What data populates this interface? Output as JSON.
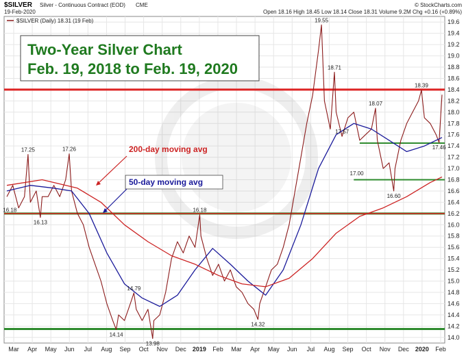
{
  "header": {
    "symbol": "$SILVER",
    "description": "Silver - Continuous Contract (EOD)",
    "exchange": "CME",
    "date": "19-Feb-2020",
    "quote": "Open 18.16  High 18.45  Low 18.14  Close 18.31  Volume 9.2M  Chg +0.16 (+0.89%)",
    "watermark": "© StockCharts.com",
    "legend": "$SILVER (Daily) 18.31 (19 Feb)"
  },
  "chart_data": {
    "type": "line",
    "title": "Two-Year Silver Chart",
    "subtitle": "Feb. 19, 2018 to Feb. 19, 2020",
    "ylim": [
      13.9,
      19.7
    ],
    "y_ticks": [
      "14.0",
      "14.2",
      "14.4",
      "14.6",
      "14.8",
      "15.0",
      "15.2",
      "15.4",
      "15.6",
      "15.8",
      "16.0",
      "16.2",
      "16.4",
      "16.6",
      "16.8",
      "17.0",
      "17.2",
      "17.4",
      "17.6",
      "17.8",
      "18.0",
      "18.2",
      "18.4",
      "18.6",
      "18.8",
      "19.0",
      "19.2",
      "19.4",
      "19.6"
    ],
    "x_ticks": [
      "Mar",
      "Apr",
      "May",
      "Jun",
      "Jul",
      "Aug",
      "Sep",
      "Oct",
      "Nov",
      "Dec",
      "2019",
      "Feb",
      "Mar",
      "Apr",
      "May",
      "Jun",
      "Jul",
      "Aug",
      "Sep",
      "Oct",
      "Nov",
      "Dec",
      "2020",
      "Feb"
    ],
    "series": [
      {
        "name": "$SILVER (Daily) 18.31 (19 Feb)",
        "color": "#8b1a1a",
        "points": [
          [
            0,
            16.5
          ],
          [
            1,
            16.7
          ],
          [
            2,
            16.3
          ],
          [
            3,
            16.5
          ],
          [
            3.6,
            17.25
          ],
          [
            4,
            16.4
          ],
          [
            5,
            16.6
          ],
          [
            5.7,
            16.13
          ],
          [
            6,
            16.5
          ],
          [
            7,
            16.5
          ],
          [
            8,
            16.7
          ],
          [
            9,
            16.5
          ],
          [
            10,
            16.8
          ],
          [
            10.6,
            17.26
          ],
          [
            11,
            16.6
          ],
          [
            12,
            16.2
          ],
          [
            13,
            16.0
          ],
          [
            14,
            15.6
          ],
          [
            15,
            15.3
          ],
          [
            16,
            15.0
          ],
          [
            17,
            14.6
          ],
          [
            18,
            14.3
          ],
          [
            18.6,
            14.14
          ],
          [
            19,
            14.4
          ],
          [
            20,
            14.3
          ],
          [
            21,
            14.6
          ],
          [
            21.6,
            14.79
          ],
          [
            22,
            14.5
          ],
          [
            23,
            14.3
          ],
          [
            24,
            14.5
          ],
          [
            24.8,
            13.98
          ],
          [
            25,
            14.3
          ],
          [
            26,
            14.4
          ],
          [
            27,
            14.8
          ],
          [
            28,
            15.4
          ],
          [
            29,
            15.7
          ],
          [
            30,
            15.5
          ],
          [
            31,
            15.8
          ],
          [
            32,
            15.6
          ],
          [
            32.8,
            16.18
          ],
          [
            33,
            15.8
          ],
          [
            34,
            15.4
          ],
          [
            35,
            15.1
          ],
          [
            36,
            15.3
          ],
          [
            37,
            15.0
          ],
          [
            38,
            15.2
          ],
          [
            39,
            14.9
          ],
          [
            40,
            14.8
          ],
          [
            41,
            14.6
          ],
          [
            42,
            14.5
          ],
          [
            42.7,
            14.32
          ],
          [
            43,
            14.6
          ],
          [
            44,
            14.9
          ],
          [
            45,
            15.2
          ],
          [
            46,
            15.3
          ],
          [
            47,
            15.6
          ],
          [
            48,
            16.0
          ],
          [
            49,
            16.6
          ],
          [
            50,
            17.2
          ],
          [
            51,
            17.8
          ],
          [
            52,
            18.3
          ],
          [
            53,
            19.1
          ],
          [
            53.5,
            19.55
          ],
          [
            54,
            18.2
          ],
          [
            55,
            17.7
          ],
          [
            55.7,
            18.71
          ],
          [
            56,
            18.0
          ],
          [
            57,
            17.57
          ],
          [
            58,
            17.9
          ],
          [
            59,
            18.0
          ],
          [
            60,
            17.5
          ],
          [
            61,
            17.6
          ],
          [
            62,
            17.7
          ],
          [
            62.7,
            18.07
          ],
          [
            63,
            17.5
          ],
          [
            64,
            17.0
          ],
          [
            65,
            17.1
          ],
          [
            65.8,
            16.6
          ],
          [
            66,
            17.0
          ],
          [
            67,
            17.5
          ],
          [
            68,
            17.8
          ],
          [
            69,
            18.0
          ],
          [
            70,
            18.2
          ],
          [
            70.5,
            18.39
          ],
          [
            71,
            17.9
          ],
          [
            72,
            17.8
          ],
          [
            73,
            17.6
          ],
          [
            73.5,
            17.46
          ],
          [
            74,
            18.31
          ]
        ]
      },
      {
        "name": "50-day moving avg",
        "color": "#1a1a9a",
        "points": [
          [
            0,
            16.6
          ],
          [
            4,
            16.7
          ],
          [
            8,
            16.65
          ],
          [
            11,
            16.6
          ],
          [
            14,
            16.2
          ],
          [
            17,
            15.5
          ],
          [
            20,
            14.95
          ],
          [
            23,
            14.7
          ],
          [
            26,
            14.55
          ],
          [
            29,
            14.75
          ],
          [
            32,
            15.2
          ],
          [
            35,
            15.58
          ],
          [
            38,
            15.3
          ],
          [
            41,
            15.0
          ],
          [
            44,
            14.75
          ],
          [
            47,
            15.2
          ],
          [
            50,
            16.0
          ],
          [
            53,
            17.0
          ],
          [
            56,
            17.6
          ],
          [
            59,
            17.8
          ],
          [
            62,
            17.7
          ],
          [
            65,
            17.5
          ],
          [
            68,
            17.3
          ],
          [
            71,
            17.4
          ],
          [
            74,
            17.55
          ]
        ]
      },
      {
        "name": "200-day moving avg",
        "color": "#cc2222",
        "points": [
          [
            0,
            16.7
          ],
          [
            6,
            16.8
          ],
          [
            12,
            16.65
          ],
          [
            16,
            16.4
          ],
          [
            20,
            16.0
          ],
          [
            24,
            15.7
          ],
          [
            28,
            15.45
          ],
          [
            32,
            15.3
          ],
          [
            36,
            15.1
          ],
          [
            40,
            14.95
          ],
          [
            44,
            14.9
          ],
          [
            48,
            15.05
          ],
          [
            52,
            15.4
          ],
          [
            56,
            15.85
          ],
          [
            60,
            16.15
          ],
          [
            64,
            16.3
          ],
          [
            68,
            16.5
          ],
          [
            72,
            16.75
          ],
          [
            74,
            16.85
          ]
        ]
      }
    ],
    "horizontal_lines": [
      {
        "value": 18.4,
        "color": "#dd2222"
      },
      {
        "value": 16.2,
        "color": "#2e8b2e"
      },
      {
        "value": 16.2,
        "color": "#dd2222"
      },
      {
        "value": 14.15,
        "color": "#2e8b2e"
      },
      {
        "value": 17.45,
        "color": "#2e8b2e"
      },
      {
        "value": 16.8,
        "color": "#2e8b2e"
      }
    ],
    "annotations": [
      {
        "label": "17.25",
        "x": 3.6,
        "y": 17.25
      },
      {
        "label": "17.26",
        "x": 10.6,
        "y": 17.26
      },
      {
        "label": "16.18",
        "x": 0.5,
        "y": 16.18
      },
      {
        "label": "16.13",
        "x": 5.7,
        "y": 16.13
      },
      {
        "label": "14.14",
        "x": 18.6,
        "y": 14.14
      },
      {
        "label": "14.79",
        "x": 21.6,
        "y": 14.79
      },
      {
        "label": "13.98",
        "x": 24.8,
        "y": 13.98
      },
      {
        "label": "16.18",
        "x": 32.8,
        "y": 16.18
      },
      {
        "label": "14.32",
        "x": 42.7,
        "y": 14.32
      },
      {
        "label": "19.55",
        "x": 53.5,
        "y": 19.55
      },
      {
        "label": "18.71",
        "x": 55.7,
        "y": 18.71
      },
      {
        "label": "17.57",
        "x": 57,
        "y": 17.57
      },
      {
        "label": "18.07",
        "x": 62.7,
        "y": 18.07
      },
      {
        "label": "17.00",
        "x": 59.5,
        "y": 17.0
      },
      {
        "label": "16.60",
        "x": 65.8,
        "y": 16.6
      },
      {
        "label": "18.39",
        "x": 70.5,
        "y": 18.39
      },
      {
        "label": "17.46",
        "x": 73.5,
        "y": 17.46
      }
    ],
    "callouts": [
      {
        "label": "200-day moving avg",
        "color": "#cc2222"
      },
      {
        "label": "50-day moving avg",
        "color": "#1a1a9a"
      }
    ],
    "grid": true
  }
}
